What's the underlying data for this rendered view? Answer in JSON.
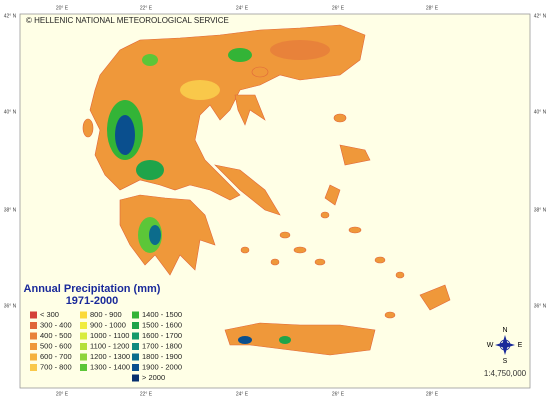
{
  "header": {
    "title": "© HELLENIC NATIONAL METEOROLOGICAL SERVICE"
  },
  "graticule": {
    "longitudes": [
      "20° E",
      "22° E",
      "24° E",
      "26° E",
      "28° E"
    ],
    "latitudes": [
      "42° N",
      "40° N",
      "38° N",
      "36° N"
    ]
  },
  "legend": {
    "title": "Annual Precipitation (mm)",
    "period": "1971-2000",
    "classes": [
      {
        "label": "< 300",
        "color": "#d4413a"
      },
      {
        "label": "300 - 400",
        "color": "#e0663a"
      },
      {
        "label": "400 - 500",
        "color": "#e8823a"
      },
      {
        "label": "500 - 600",
        "color": "#ef983a"
      },
      {
        "label": "600 - 700",
        "color": "#f5b23c"
      },
      {
        "label": "700 - 800",
        "color": "#f9c84a"
      },
      {
        "label": "800 - 900",
        "color": "#fbd93a"
      },
      {
        "label": "900 - 1000",
        "color": "#f0ec3f"
      },
      {
        "label": "1000 - 1100",
        "color": "#d8ec3c"
      },
      {
        "label": "1100 - 1200",
        "color": "#b4e03a"
      },
      {
        "label": "1200 - 1300",
        "color": "#8ed43a"
      },
      {
        "label": "1300 - 1400",
        "color": "#5cc638"
      },
      {
        "label": "1400 - 1500",
        "color": "#33b437"
      },
      {
        "label": "1500 - 1600",
        "color": "#1fa44a"
      },
      {
        "label": "1600 - 1700",
        "color": "#169a6a"
      },
      {
        "label": "1700 - 1800",
        "color": "#0f8a7f"
      },
      {
        "label": "1800 - 1900",
        "color": "#0c6c8c"
      },
      {
        "label": "1900 - 2000",
        "color": "#0a4f8e"
      },
      {
        "label": "> 2000",
        "color": "#062f6f"
      }
    ]
  },
  "compass": {
    "n": "N",
    "e": "E",
    "s": "S",
    "w": "W"
  },
  "scale": "1:4,750,000"
}
